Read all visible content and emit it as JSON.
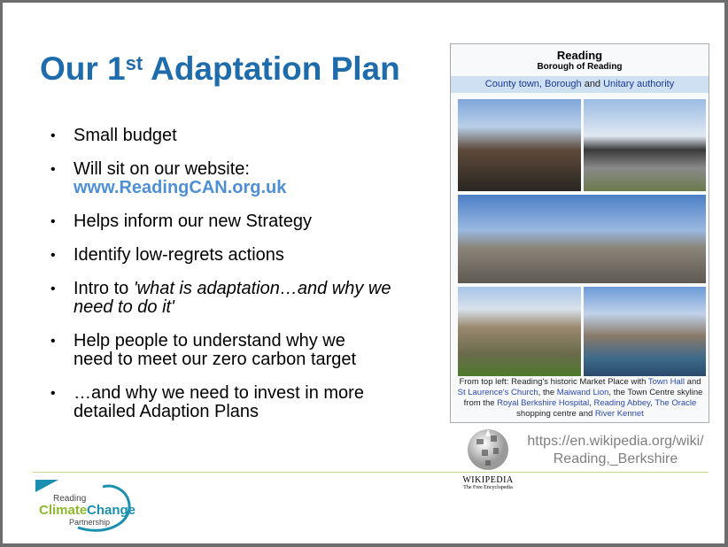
{
  "slide": {
    "title": {
      "main": "Our 1",
      "sup": "st",
      "rest": " Adaptation Plan"
    },
    "bullets": [
      {
        "text": "Small budget"
      },
      {
        "text": "Will sit on our website:",
        "link": "www.ReadingCAN.org.uk"
      },
      {
        "text": "Helps inform our new Strategy"
      },
      {
        "text": "Identify low-regrets actions"
      },
      {
        "text": "Intro to ",
        "italic": "'what is adaptation…and why we need to do it'"
      },
      {
        "text": "Help people to understand why we need to meet our zero carbon target"
      },
      {
        "text": "…and why we need to invest in more detailed Adaption Plans"
      }
    ],
    "infobox": {
      "name": "Reading",
      "subtitle": "Borough of Reading",
      "band": {
        "a": "County town, Borough",
        "b": " and ",
        "c": "Unitary authority"
      },
      "caption": [
        "From top left: Reading's historic Market Place with ",
        "Town Hall",
        " and ",
        "St Laurence's Church",
        ", the ",
        "Maiwand Lion",
        ", the Town Centre skyline from the ",
        "Royal Berkshire Hospital",
        ", ",
        "Reading Abbey",
        ", ",
        "The Oracle",
        " shopping centre and ",
        "River Kennet"
      ]
    },
    "wikipedia": {
      "wordmark": "Wikipedia",
      "tagline": "The Free Encyclopedia"
    },
    "url": {
      "line1": "https://en.wikipedia.org/wiki/",
      "line2": "Reading,_Berkshire"
    },
    "logo": {
      "line1": "Reading",
      "line2a": "Climate",
      "line2b": "Change",
      "line3": "Partnership"
    },
    "colors": {
      "title": "#1f6cad",
      "link": "#4f8fd6",
      "rule": "#c3d69b",
      "logo_green": "#8dba2c",
      "logo_teal": "#1b8fb0"
    }
  }
}
